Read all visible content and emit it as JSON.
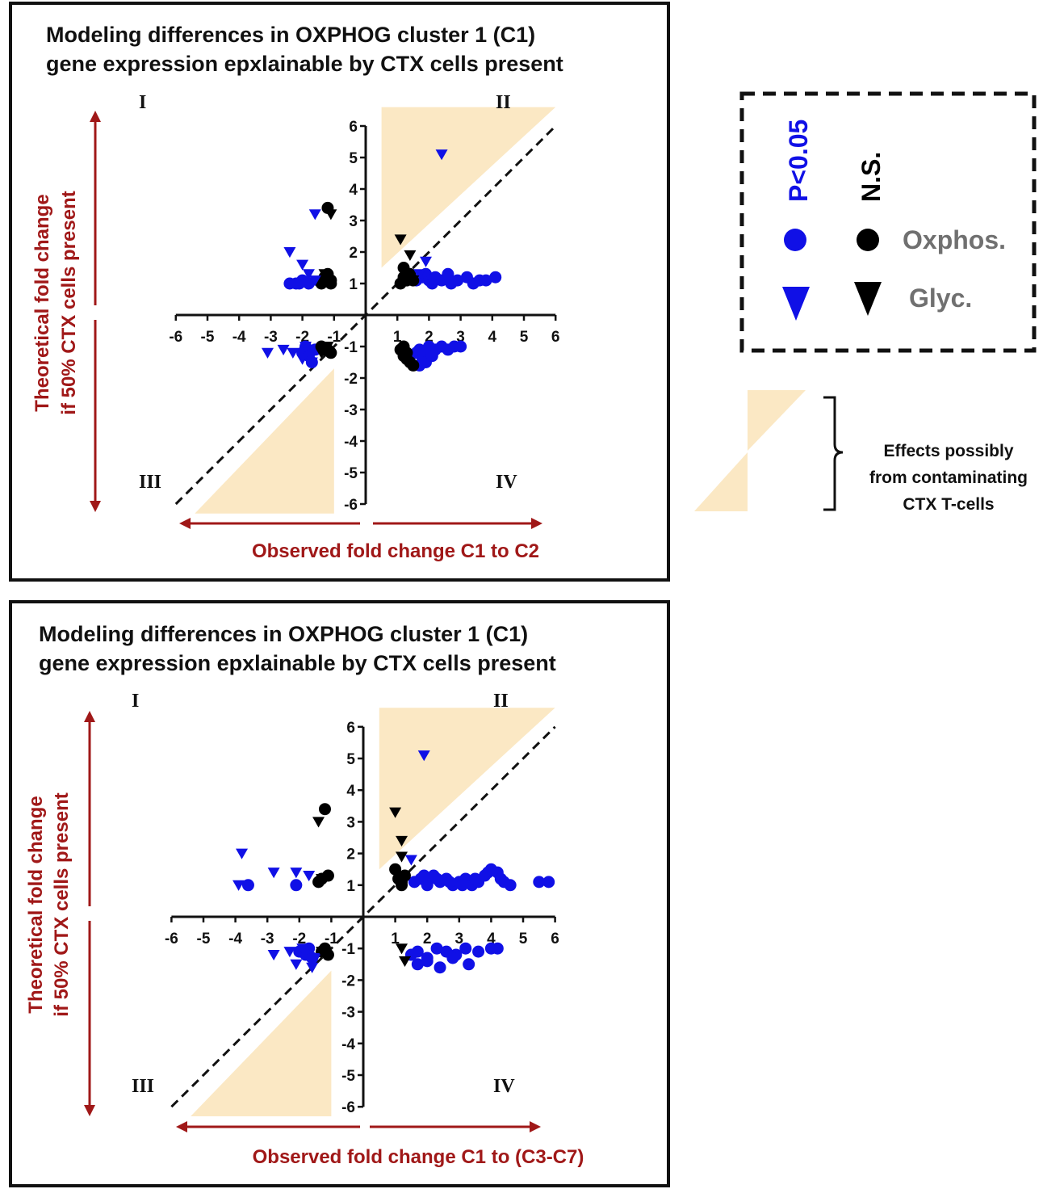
{
  "colors": {
    "significant": "#1010e6",
    "not_significant": "#000000",
    "shade": "#fbe8c4",
    "axis_label": "#a01818",
    "legend_label_gray": "#707070"
  },
  "legend": {
    "sig_label": "P<0.05",
    "ns_label": "N.S.",
    "oxphos_label": "Oxphos.",
    "glyc_label": "Glyc.",
    "note_lines": [
      "Effects possibly",
      "from contaminating",
      "CTX T-cells"
    ]
  },
  "chart_data": [
    {
      "type": "scatter",
      "title_lines": [
        "Modeling differences in OXPHOG cluster 1 (C1)",
        "gene expression epxlainable by CTX cells present"
      ],
      "xlabel": "Observed fold change  C1 to C2",
      "ylabel_lines": [
        "Theoretical fold change",
        "if 50% CTX cells present"
      ],
      "xlim": [
        -6,
        6
      ],
      "ylim": [
        -6,
        6
      ],
      "xticks": [
        "-6",
        "-5",
        "-4",
        "-3",
        "-2",
        "-1",
        "1",
        "2",
        "3",
        "4",
        "5",
        "6"
      ],
      "yticks": [
        "6",
        "5",
        "4",
        "3",
        "2",
        "1",
        "-1",
        "-2",
        "-3",
        "-4",
        "-5",
        "-6"
      ],
      "quadrants": [
        "I",
        "II",
        "III",
        "IV"
      ],
      "reference_line": "y = x",
      "series": [
        {
          "name": "P<0.05 Oxphos.",
          "marker": "circle",
          "color": "#1010e6",
          "x": [
            1.6,
            1.8,
            1.9,
            2.0,
            2.1,
            2.2,
            2.4,
            2.6,
            2.7,
            2.9,
            3.2,
            3.4,
            3.6,
            3.8,
            4.1,
            1.7,
            1.9,
            2.0,
            2.2,
            2.4,
            2.6,
            2.8,
            3.0,
            1.4,
            1.6,
            1.8,
            1.7,
            1.9,
            2.1,
            -1.8,
            -2.0,
            -2.1,
            -2.2,
            -2.4,
            -1.9,
            -1.6,
            -2.0,
            -1.7,
            -1.8
          ],
          "y": [
            1.1,
            1.2,
            1.3,
            1.1,
            1.0,
            1.2,
            1.1,
            1.3,
            1.0,
            1.1,
            1.2,
            1.0,
            1.1,
            1.1,
            1.2,
            -1.1,
            -1.2,
            -1.0,
            -1.1,
            -1.0,
            -1.1,
            -1.0,
            -1.0,
            -1.3,
            -1.2,
            -1.4,
            -1.6,
            -1.5,
            -1.3,
            1.0,
            1.1,
            1.0,
            1.0,
            1.0,
            -1.0,
            -1.1,
            -1.2,
            -1.5,
            -1.3
          ]
        },
        {
          "name": "N.S. Oxphos.",
          "marker": "circle",
          "color": "#000000",
          "x": [
            -1.2,
            -1.3,
            -1.1,
            -1.4,
            -1.2,
            -1.1,
            -1.3,
            1.1,
            1.2,
            1.3,
            1.4,
            1.2,
            1.5,
            1.1,
            1.3,
            1.2,
            1.4,
            1.3,
            1.2,
            1.5,
            -1.2,
            -1.4,
            -1.1,
            -1.3
          ],
          "y": [
            3.4,
            1.2,
            1.1,
            1.0,
            1.3,
            1.0,
            1.1,
            1.0,
            1.2,
            1.1,
            1.3,
            1.5,
            1.1,
            -1.1,
            -1.2,
            -1.3,
            -1.5,
            -1.4,
            -1.0,
            -1.6,
            -1.1,
            -1.0,
            -1.2,
            -1.1
          ]
        },
        {
          "name": "P<0.05 Glyc.",
          "marker": "triangle",
          "color": "#1010e6",
          "x": [
            2.4,
            -1.6,
            -2.4,
            -2.0,
            -1.8,
            -1.6,
            1.9,
            1.7,
            2.1,
            -3.1,
            -2.6,
            -2.3,
            -1.9,
            -1.7,
            -2.0
          ],
          "y": [
            5.1,
            3.2,
            2.0,
            1.6,
            1.3,
            1.1,
            1.7,
            1.3,
            1.1,
            -1.2,
            -1.1,
            -1.2,
            -1.0,
            -1.5,
            -1.4
          ]
        },
        {
          "name": "N.S. Glyc.",
          "marker": "triangle",
          "color": "#000000",
          "x": [
            1.1,
            1.4,
            1.2,
            1.3,
            1.5,
            -1.1,
            -1.3,
            -1.2,
            -1.4
          ],
          "y": [
            2.4,
            1.9,
            1.1,
            1.2,
            1.1,
            3.2,
            1.3,
            -1.0,
            -1.2
          ]
        }
      ]
    },
    {
      "type": "scatter",
      "title_lines": [
        "Modeling differences in OXPHOG cluster 1 (C1)",
        "gene expression epxlainable by CTX cells present"
      ],
      "xlabel": "Observed fold change  C1 to (C3-C7)",
      "ylabel_lines": [
        "Theoretical fold change",
        "if 50% CTX cells present"
      ],
      "xlim": [
        -6,
        6
      ],
      "ylim": [
        -6,
        6
      ],
      "xticks": [
        "-6",
        "-5",
        "-4",
        "-3",
        "-2",
        "-1",
        "1",
        "2",
        "3",
        "4",
        "5",
        "6"
      ],
      "yticks": [
        "6",
        "5",
        "4",
        "3",
        "2",
        "1",
        "-1",
        "-2",
        "-3",
        "-4",
        "-5",
        "-6"
      ],
      "quadrants": [
        "I",
        "II",
        "III",
        "IV"
      ],
      "reference_line": "y = x",
      "series": [
        {
          "name": "P<0.05 Oxphos.",
          "marker": "circle",
          "color": "#1010e6",
          "x": [
            1.6,
            1.8,
            2.0,
            2.2,
            2.4,
            2.6,
            2.8,
            3.0,
            3.2,
            3.4,
            3.6,
            3.8,
            4.0,
            4.2,
            4.4,
            4.6,
            5.5,
            5.8,
            1.9,
            2.3,
            2.7,
            3.1,
            3.5,
            3.9,
            4.3,
            1.5,
            1.7,
            2.0,
            2.3,
            2.6,
            2.9,
            3.2,
            3.6,
            4.0,
            4.2,
            1.7,
            2.0,
            2.4,
            2.8,
            3.3,
            -3.6,
            -2.1,
            -1.7,
            -2.0,
            -1.8,
            -1.6
          ],
          "y": [
            1.1,
            1.2,
            1.0,
            1.3,
            1.1,
            1.2,
            1.0,
            1.1,
            1.2,
            1.0,
            1.1,
            1.3,
            1.5,
            1.4,
            1.1,
            1.0,
            1.1,
            1.1,
            1.3,
            1.2,
            1.1,
            1.0,
            1.2,
            1.4,
            1.2,
            -1.2,
            -1.1,
            -1.3,
            -1.0,
            -1.1,
            -1.2,
            -1.0,
            -1.1,
            -1.0,
            -1.0,
            -1.5,
            -1.4,
            -1.6,
            -1.3,
            -1.5,
            1.0,
            1.0,
            -1.0,
            -1.1,
            -1.2,
            -1.3
          ]
        },
        {
          "name": "N.S. Oxphos.",
          "marker": "circle",
          "color": "#000000",
          "x": [
            -1.2,
            -1.4,
            -1.3,
            -1.1,
            1.0,
            1.1,
            1.2,
            1.3,
            1.2,
            -1.2,
            -1.1,
            -1.3
          ],
          "y": [
            3.4,
            1.1,
            1.2,
            1.3,
            1.5,
            1.2,
            1.0,
            1.3,
            1.1,
            -1.0,
            -1.2,
            -1.1
          ]
        },
        {
          "name": "P<0.05 Glyc.",
          "marker": "triangle",
          "color": "#1010e6",
          "x": [
            1.9,
            1.5,
            -3.8,
            -3.9,
            -2.8,
            -2.1,
            -1.7,
            -2.8,
            -2.3,
            -1.9,
            -1.6,
            -2.1,
            -1.5
          ],
          "y": [
            5.1,
            1.8,
            2.0,
            1.0,
            1.4,
            1.4,
            1.3,
            -1.2,
            -1.1,
            -1.0,
            -1.6,
            -1.5,
            -1.3
          ]
        },
        {
          "name": "N.S. Glyc.",
          "marker": "triangle",
          "color": "#000000",
          "x": [
            1.0,
            1.2,
            1.2,
            1.3,
            -1.4,
            -1.3,
            1.2,
            1.3,
            -1.3
          ],
          "y": [
            3.3,
            2.4,
            1.9,
            1.3,
            3.0,
            1.2,
            -1.0,
            -1.4,
            -1.1
          ]
        }
      ]
    }
  ]
}
